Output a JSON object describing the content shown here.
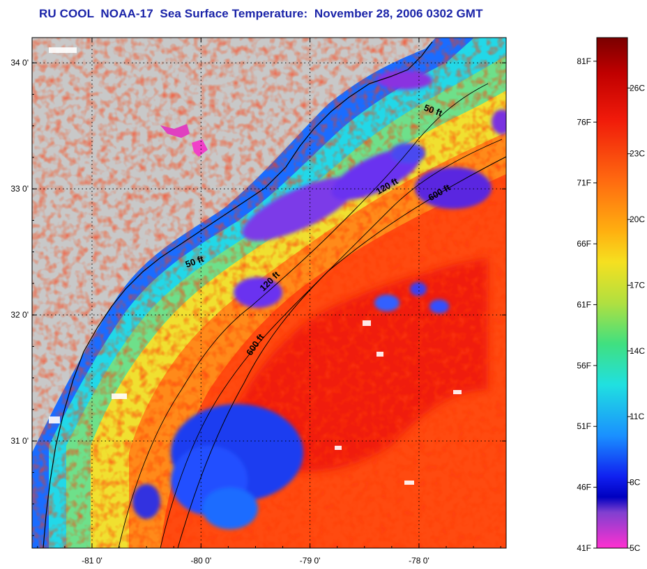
{
  "title": "RU COOL  NOAA-17  Sea Surface Temperature:  November 28, 2006 0302 GMT",
  "map": {
    "land_color": "#c8c8c8",
    "lon_range": [
      -81.55,
      -77.2
    ],
    "lat_range": [
      30.15,
      34.2
    ],
    "lon_ticks": [
      {
        "value": -81,
        "label": "-81 0'"
      },
      {
        "value": -80,
        "label": "-80 0'"
      },
      {
        "value": -79,
        "label": "-79 0'"
      },
      {
        "value": -78,
        "label": "-78 0'"
      }
    ],
    "lat_ticks": [
      {
        "value": 31,
        "label": "31 0'"
      },
      {
        "value": 32,
        "label": "32 0'"
      },
      {
        "value": 33,
        "label": "33 0'"
      },
      {
        "value": 34,
        "label": "34 0'"
      }
    ],
    "isobath_labels": [
      {
        "text": "50 ft",
        "lon": -77.88,
        "lat": 33.6,
        "rotate": 20
      },
      {
        "text": "50 ft",
        "lon": -80.05,
        "lat": 32.4,
        "rotate": -20
      },
      {
        "text": "120 ft",
        "lon": -78.28,
        "lat": 33.0,
        "rotate": -30
      },
      {
        "text": "600 ft",
        "lon": -77.8,
        "lat": 32.95,
        "rotate": -30
      },
      {
        "text": "120 ft",
        "lon": -79.35,
        "lat": 32.25,
        "rotate": -45
      },
      {
        "text": "600 ft",
        "lon": -79.48,
        "lat": 31.75,
        "rotate": -55
      }
    ]
  },
  "colorbar": {
    "f_labels": [
      {
        "value": 81,
        "label": "81F"
      },
      {
        "value": 76,
        "label": "76F"
      },
      {
        "value": 71,
        "label": "71F"
      },
      {
        "value": 66,
        "label": "66F"
      },
      {
        "value": 61,
        "label": "61F"
      },
      {
        "value": 56,
        "label": "56F"
      },
      {
        "value": 51,
        "label": "51F"
      },
      {
        "value": 46,
        "label": "46F"
      },
      {
        "value": 41,
        "label": "41F"
      }
    ],
    "c_labels": [
      {
        "value": 26,
        "label": "26C"
      },
      {
        "value": 23,
        "label": "23C"
      },
      {
        "value": 20,
        "label": "20C"
      },
      {
        "value": 17,
        "label": "17C"
      },
      {
        "value": 14,
        "label": "14C"
      },
      {
        "value": 11,
        "label": "11C"
      },
      {
        "value": 8,
        "label": "8C"
      },
      {
        "value": 5,
        "label": "5C"
      }
    ],
    "c_min": 5,
    "c_max": 28.3
  }
}
